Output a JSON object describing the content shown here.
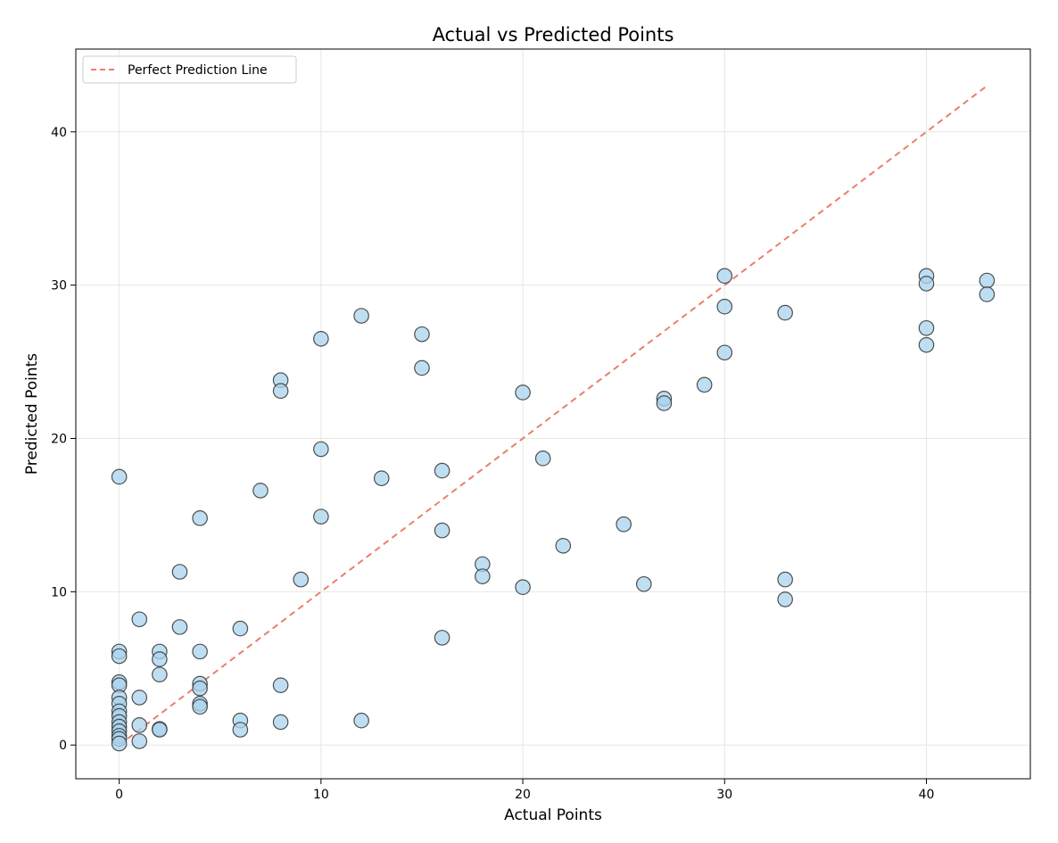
{
  "chart_data": {
    "type": "scatter",
    "title": "Actual vs Predicted Points",
    "xlabel": "Actual Points",
    "ylabel": "Predicted Points",
    "xlim": [
      -2.15,
      45.15
    ],
    "ylim": [
      -2.2,
      45.4
    ],
    "xticks": [
      0,
      10,
      20,
      30,
      40
    ],
    "yticks": [
      0,
      10,
      20,
      30,
      40
    ],
    "grid": true,
    "legend": {
      "placement": "top-left",
      "entries": [
        "Perfect Prediction Line"
      ]
    },
    "reference_line": {
      "name": "Perfect Prediction Line",
      "x": [
        0,
        43
      ],
      "y": [
        0,
        43
      ],
      "style": "dashed",
      "color": "#e8806b"
    },
    "marker_color": "#a9d3ec",
    "marker_edge_color": "#333333",
    "points": [
      {
        "x": 0,
        "y": 17.5
      },
      {
        "x": 0,
        "y": 6.1
      },
      {
        "x": 0,
        "y": 5.8
      },
      {
        "x": 0,
        "y": 4.1
      },
      {
        "x": 0,
        "y": 3.9
      },
      {
        "x": 0,
        "y": 3.1
      },
      {
        "x": 0,
        "y": 2.7
      },
      {
        "x": 0,
        "y": 2.2
      },
      {
        "x": 0,
        "y": 1.9
      },
      {
        "x": 0,
        "y": 1.5
      },
      {
        "x": 0,
        "y": 1.2
      },
      {
        "x": 0,
        "y": 0.9
      },
      {
        "x": 0,
        "y": 0.6
      },
      {
        "x": 0,
        "y": 0.4
      },
      {
        "x": 0,
        "y": 0.1
      },
      {
        "x": 1,
        "y": 8.2
      },
      {
        "x": 1,
        "y": 3.1
      },
      {
        "x": 1,
        "y": 1.3
      },
      {
        "x": 1,
        "y": 0.25
      },
      {
        "x": 2,
        "y": 6.1
      },
      {
        "x": 2,
        "y": 5.6
      },
      {
        "x": 2,
        "y": 4.6
      },
      {
        "x": 2,
        "y": 1.05
      },
      {
        "x": 2,
        "y": 1.0
      },
      {
        "x": 3,
        "y": 11.3
      },
      {
        "x": 3,
        "y": 7.7
      },
      {
        "x": 4,
        "y": 14.8
      },
      {
        "x": 4,
        "y": 6.1
      },
      {
        "x": 4,
        "y": 4.0
      },
      {
        "x": 4,
        "y": 3.7
      },
      {
        "x": 4,
        "y": 2.7
      },
      {
        "x": 4,
        "y": 2.5
      },
      {
        "x": 6,
        "y": 7.6
      },
      {
        "x": 6,
        "y": 1.6
      },
      {
        "x": 6,
        "y": 1.0
      },
      {
        "x": 7,
        "y": 16.6
      },
      {
        "x": 8,
        "y": 23.8
      },
      {
        "x": 8,
        "y": 23.1
      },
      {
        "x": 8,
        "y": 3.9
      },
      {
        "x": 8,
        "y": 1.5
      },
      {
        "x": 9,
        "y": 10.8
      },
      {
        "x": 10,
        "y": 26.5
      },
      {
        "x": 10,
        "y": 19.3
      },
      {
        "x": 10,
        "y": 14.9
      },
      {
        "x": 12,
        "y": 28.0
      },
      {
        "x": 12,
        "y": 1.6
      },
      {
        "x": 13,
        "y": 17.4
      },
      {
        "x": 15,
        "y": 26.8
      },
      {
        "x": 15,
        "y": 24.6
      },
      {
        "x": 16,
        "y": 17.9
      },
      {
        "x": 16,
        "y": 14.0
      },
      {
        "x": 16,
        "y": 7.0
      },
      {
        "x": 18,
        "y": 11.8
      },
      {
        "x": 18,
        "y": 11.0
      },
      {
        "x": 20,
        "y": 23.0
      },
      {
        "x": 20,
        "y": 10.3
      },
      {
        "x": 21,
        "y": 18.7
      },
      {
        "x": 22,
        "y": 13.0
      },
      {
        "x": 25,
        "y": 14.4
      },
      {
        "x": 26,
        "y": 10.5
      },
      {
        "x": 27,
        "y": 22.6
      },
      {
        "x": 27,
        "y": 22.3
      },
      {
        "x": 29,
        "y": 23.5
      },
      {
        "x": 30,
        "y": 30.6
      },
      {
        "x": 30,
        "y": 28.6
      },
      {
        "x": 30,
        "y": 25.6
      },
      {
        "x": 33,
        "y": 28.2
      },
      {
        "x": 33,
        "y": 10.8
      },
      {
        "x": 33,
        "y": 9.5
      },
      {
        "x": 40,
        "y": 30.6
      },
      {
        "x": 40,
        "y": 30.1
      },
      {
        "x": 40,
        "y": 27.2
      },
      {
        "x": 40,
        "y": 26.1
      },
      {
        "x": 43,
        "y": 30.3
      },
      {
        "x": 43,
        "y": 29.4
      }
    ]
  }
}
